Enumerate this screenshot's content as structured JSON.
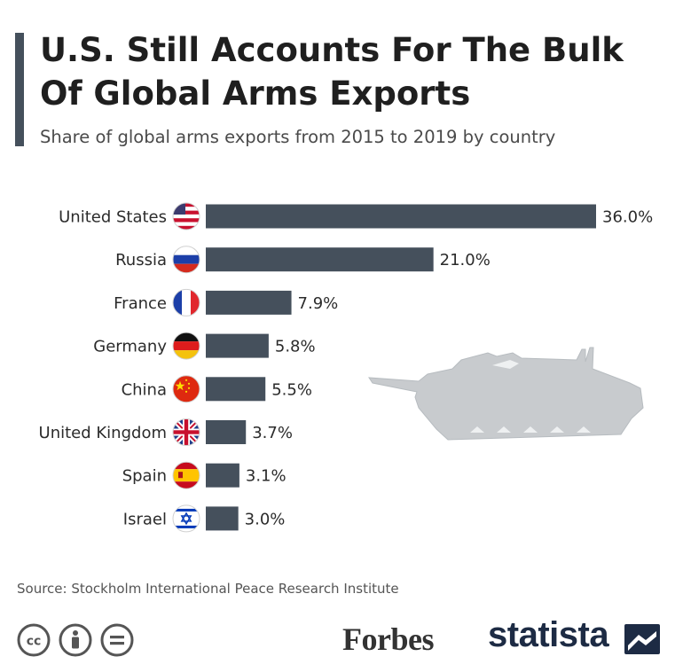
{
  "header": {
    "title": "U.S. Still Accounts For The Bulk Of Global Arms Exports",
    "subtitle": "Share of global arms exports from 2015 to 2019 by country"
  },
  "chart_data": {
    "type": "bar",
    "orientation": "horizontal",
    "categories": [
      "United States",
      "Russia",
      "France",
      "Germany",
      "China",
      "United Kingdom",
      "Spain",
      "Israel"
    ],
    "values": [
      36.0,
      21.0,
      7.9,
      5.8,
      5.5,
      3.7,
      3.1,
      3.0
    ],
    "value_labels": [
      "36.0%",
      "21.0%",
      "7.9%",
      "5.8%",
      "5.5%",
      "3.7%",
      "3.1%",
      "3.0%"
    ],
    "flags": [
      "us-flag-icon",
      "russia-flag-icon",
      "france-flag-icon",
      "germany-flag-icon",
      "china-flag-icon",
      "uk-flag-icon",
      "spain-flag-icon",
      "israel-flag-icon"
    ],
    "xlim": [
      0,
      36.0
    ],
    "grid": false,
    "bar_color": "#45505c"
  },
  "footer": {
    "source": "Source: Stockholm International Peace Research Institute",
    "license_icons": [
      "cc-icon",
      "attribution-icon",
      "no-derivatives-icon"
    ],
    "forbes_logo": "Forbes",
    "statista_logo": "statista"
  },
  "colors": {
    "accent": "#45505c",
    "statista": "#1d2b44"
  }
}
